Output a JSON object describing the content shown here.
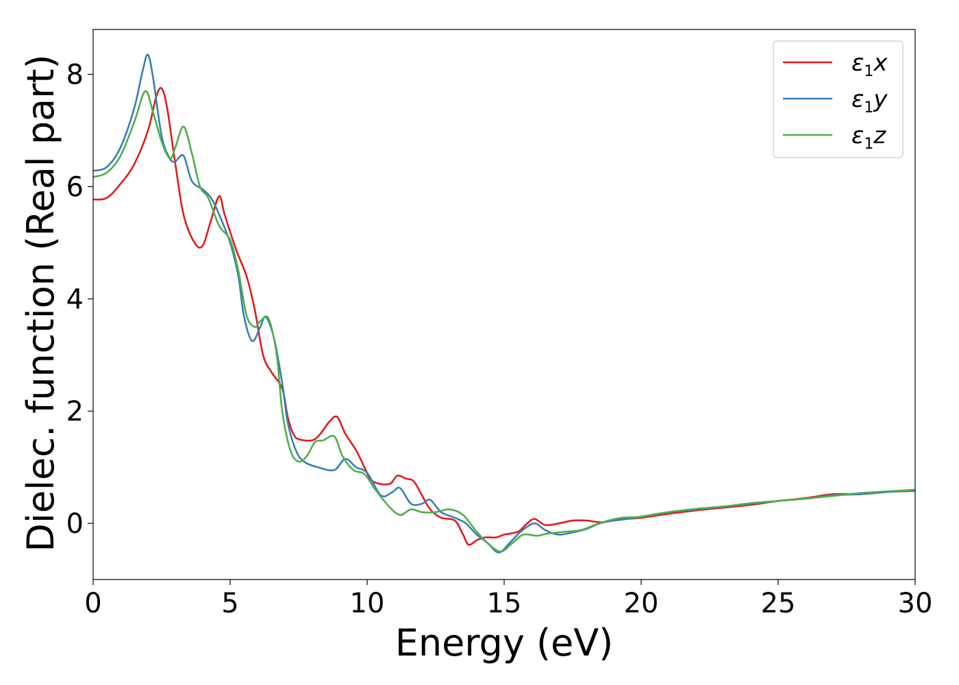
{
  "chart_data": {
    "type": "line",
    "xlabel": "Energy (eV)",
    "ylabel": "Dielec. function (Real part)",
    "xlim": [
      0,
      30
    ],
    "ylim": [
      -1,
      8.8
    ],
    "xticks": [
      0,
      5,
      10,
      15,
      20,
      25,
      30
    ],
    "yticks": [
      0,
      2,
      4,
      6,
      8
    ],
    "grid": false,
    "legend_position": "top-right",
    "series": [
      {
        "name": "ε1x",
        "legend": {
          "base": "ε",
          "sub": "1",
          "suffix": "x"
        },
        "color": "#e41a1c",
        "points": [
          [
            0,
            5.77
          ],
          [
            0.5,
            5.8
          ],
          [
            1,
            6.05
          ],
          [
            1.5,
            6.4
          ],
          [
            2.0,
            7.0
          ],
          [
            2.3,
            7.6
          ],
          [
            2.5,
            7.75
          ],
          [
            2.7,
            7.4
          ],
          [
            3.0,
            6.4
          ],
          [
            3.3,
            5.5
          ],
          [
            3.7,
            5.0
          ],
          [
            4.0,
            4.95
          ],
          [
            4.3,
            5.4
          ],
          [
            4.6,
            5.83
          ],
          [
            4.8,
            5.5
          ],
          [
            5.2,
            4.9
          ],
          [
            5.6,
            4.4
          ],
          [
            5.9,
            3.8
          ],
          [
            6.2,
            3.0
          ],
          [
            6.5,
            2.7
          ],
          [
            6.9,
            2.4
          ],
          [
            7.1,
            1.9
          ],
          [
            7.3,
            1.6
          ],
          [
            7.5,
            1.5
          ],
          [
            8.0,
            1.48
          ],
          [
            8.3,
            1.6
          ],
          [
            8.6,
            1.8
          ],
          [
            8.9,
            1.9
          ],
          [
            9.2,
            1.6
          ],
          [
            9.6,
            1.3
          ],
          [
            9.9,
            1.0
          ],
          [
            10.2,
            0.75
          ],
          [
            10.8,
            0.7
          ],
          [
            11.1,
            0.85
          ],
          [
            11.4,
            0.8
          ],
          [
            11.7,
            0.75
          ],
          [
            12.0,
            0.5
          ],
          [
            12.3,
            0.25
          ],
          [
            12.7,
            0.1
          ],
          [
            13.2,
            0.05
          ],
          [
            13.5,
            -0.2
          ],
          [
            13.7,
            -0.38
          ],
          [
            14.0,
            -0.3
          ],
          [
            14.3,
            -0.25
          ],
          [
            14.7,
            -0.25
          ],
          [
            15.0,
            -0.2
          ],
          [
            15.5,
            -0.15
          ],
          [
            15.8,
            -0.02
          ],
          [
            16.1,
            0.08
          ],
          [
            16.5,
            -0.03
          ],
          [
            17.0,
            0.0
          ],
          [
            17.5,
            0.05
          ],
          [
            18.0,
            0.05
          ],
          [
            18.5,
            0.02
          ],
          [
            19.0,
            0.05
          ],
          [
            19.5,
            0.08
          ],
          [
            20.0,
            0.1
          ],
          [
            21.0,
            0.17
          ],
          [
            22.0,
            0.23
          ],
          [
            23.0,
            0.28
          ],
          [
            24.0,
            0.33
          ],
          [
            25.0,
            0.4
          ],
          [
            26.0,
            0.45
          ],
          [
            27.0,
            0.52
          ],
          [
            28.0,
            0.52
          ],
          [
            29.0,
            0.56
          ],
          [
            30.0,
            0.58
          ]
        ]
      },
      {
        "name": "ε1y",
        "legend": {
          "base": "ε",
          "sub": "1",
          "suffix": "y"
        },
        "color": "#377eb8",
        "points": [
          [
            0,
            6.28
          ],
          [
            0.5,
            6.35
          ],
          [
            1.0,
            6.7
          ],
          [
            1.5,
            7.4
          ],
          [
            1.8,
            8.05
          ],
          [
            2.0,
            8.35
          ],
          [
            2.2,
            7.9
          ],
          [
            2.5,
            6.9
          ],
          [
            2.8,
            6.5
          ],
          [
            3.0,
            6.45
          ],
          [
            3.3,
            6.55
          ],
          [
            3.6,
            6.1
          ],
          [
            4.0,
            5.95
          ],
          [
            4.3,
            5.8
          ],
          [
            4.6,
            5.5
          ],
          [
            5.0,
            5.0
          ],
          [
            5.3,
            4.4
          ],
          [
            5.5,
            3.7
          ],
          [
            5.8,
            3.25
          ],
          [
            6.1,
            3.5
          ],
          [
            6.3,
            3.68
          ],
          [
            6.6,
            3.3
          ],
          [
            6.9,
            2.5
          ],
          [
            7.1,
            1.8
          ],
          [
            7.4,
            1.3
          ],
          [
            7.7,
            1.1
          ],
          [
            8.2,
            1.0
          ],
          [
            8.8,
            0.95
          ],
          [
            9.2,
            1.15
          ],
          [
            9.6,
            1.0
          ],
          [
            10.0,
            0.9
          ],
          [
            10.5,
            0.5
          ],
          [
            10.9,
            0.55
          ],
          [
            11.2,
            0.63
          ],
          [
            11.6,
            0.35
          ],
          [
            12.0,
            0.35
          ],
          [
            12.3,
            0.42
          ],
          [
            12.7,
            0.2
          ],
          [
            13.2,
            0.1
          ],
          [
            13.6,
            0.0
          ],
          [
            14.0,
            -0.2
          ],
          [
            14.4,
            -0.35
          ],
          [
            14.8,
            -0.52
          ],
          [
            15.2,
            -0.35
          ],
          [
            15.6,
            -0.15
          ],
          [
            16.1,
            0.0
          ],
          [
            16.5,
            -0.12
          ],
          [
            17.0,
            -0.2
          ],
          [
            17.6,
            -0.15
          ],
          [
            18.0,
            -0.1
          ],
          [
            18.5,
            0.0
          ],
          [
            19.0,
            0.05
          ],
          [
            19.5,
            0.08
          ],
          [
            20.0,
            0.12
          ],
          [
            21.0,
            0.2
          ],
          [
            22.0,
            0.25
          ],
          [
            23.0,
            0.3
          ],
          [
            24.0,
            0.35
          ],
          [
            25.0,
            0.4
          ],
          [
            26.0,
            0.44
          ],
          [
            27.0,
            0.5
          ],
          [
            28.0,
            0.52
          ],
          [
            29.0,
            0.56
          ],
          [
            30.0,
            0.59
          ]
        ]
      },
      {
        "name": "ε1z",
        "legend": {
          "base": "ε",
          "sub": "1",
          "suffix": "z"
        },
        "color": "#4daf4a",
        "points": [
          [
            0,
            6.17
          ],
          [
            0.5,
            6.25
          ],
          [
            1.0,
            6.55
          ],
          [
            1.5,
            7.15
          ],
          [
            1.9,
            7.7
          ],
          [
            2.2,
            7.3
          ],
          [
            2.5,
            6.8
          ],
          [
            2.8,
            6.5
          ],
          [
            3.0,
            6.7
          ],
          [
            3.3,
            7.07
          ],
          [
            3.6,
            6.6
          ],
          [
            3.9,
            6.0
          ],
          [
            4.2,
            5.8
          ],
          [
            4.6,
            5.3
          ],
          [
            5.0,
            5.05
          ],
          [
            5.3,
            4.5
          ],
          [
            5.6,
            3.7
          ],
          [
            5.9,
            3.5
          ],
          [
            6.1,
            3.6
          ],
          [
            6.4,
            3.65
          ],
          [
            6.7,
            3.0
          ],
          [
            6.9,
            2.0
          ],
          [
            7.2,
            1.3
          ],
          [
            7.5,
            1.1
          ],
          [
            7.8,
            1.2
          ],
          [
            8.1,
            1.45
          ],
          [
            8.4,
            1.48
          ],
          [
            8.8,
            1.55
          ],
          [
            9.1,
            1.2
          ],
          [
            9.5,
            0.95
          ],
          [
            9.9,
            0.88
          ],
          [
            10.3,
            0.6
          ],
          [
            10.8,
            0.3
          ],
          [
            11.2,
            0.15
          ],
          [
            11.6,
            0.25
          ],
          [
            12.0,
            0.2
          ],
          [
            12.5,
            0.2
          ],
          [
            13.0,
            0.25
          ],
          [
            13.5,
            0.15
          ],
          [
            14.0,
            -0.15
          ],
          [
            14.5,
            -0.4
          ],
          [
            14.9,
            -0.5
          ],
          [
            15.3,
            -0.35
          ],
          [
            15.7,
            -0.2
          ],
          [
            16.2,
            -0.22
          ],
          [
            16.6,
            -0.18
          ],
          [
            17.2,
            -0.15
          ],
          [
            17.8,
            -0.12
          ],
          [
            18.3,
            -0.03
          ],
          [
            18.8,
            0.05
          ],
          [
            19.3,
            0.1
          ],
          [
            20.0,
            0.12
          ],
          [
            21.0,
            0.2
          ],
          [
            22.0,
            0.26
          ],
          [
            23.0,
            0.3
          ],
          [
            24.0,
            0.36
          ],
          [
            25.0,
            0.4
          ],
          [
            26.0,
            0.44
          ],
          [
            27.0,
            0.49
          ],
          [
            28.0,
            0.54
          ],
          [
            29.0,
            0.57
          ],
          [
            30.0,
            0.6
          ]
        ]
      }
    ]
  }
}
